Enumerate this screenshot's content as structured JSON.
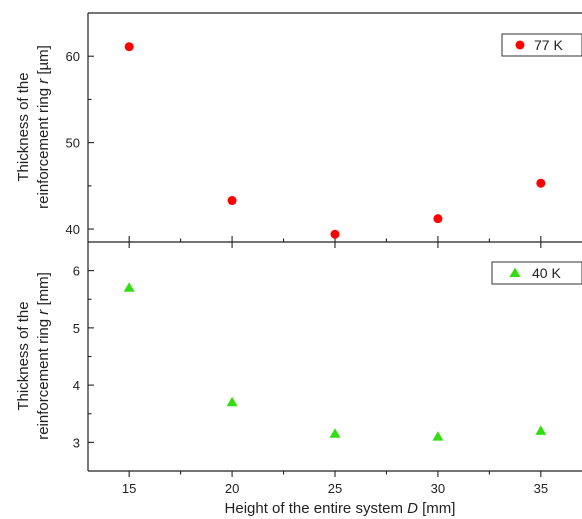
{
  "chart_data": [
    {
      "type": "scatter",
      "title": "",
      "xlabel": "",
      "ylabel_line1": "Thickness of the",
      "ylabel_line2_prefix": "reinforcement ring ",
      "ylabel_var": "r",
      "ylabel_unit": " [µm]",
      "xlim": [
        13,
        37
      ],
      "ylim": [
        38.5,
        65
      ],
      "yticks": [
        40,
        50,
        60
      ],
      "minor_yticks": [
        45,
        55
      ],
      "legend_position": "top-right",
      "series": [
        {
          "name": "77 K",
          "marker": "circle",
          "color": "#ff0000",
          "x": [
            15,
            20,
            25,
            30,
            35
          ],
          "y": [
            61.1,
            43.3,
            39.4,
            41.2,
            45.3
          ]
        }
      ]
    },
    {
      "type": "scatter",
      "title": "",
      "xlabel_prefix": "Height of the entire system ",
      "xlabel_var": "D",
      "xlabel_unit": " [mm]",
      "ylabel_line1": "Thickness of the",
      "ylabel_line2_prefix": "reinforcement ring ",
      "ylabel_var": "r",
      "ylabel_unit": " [mm]",
      "xlim": [
        13,
        37
      ],
      "ylim": [
        2.5,
        6.5
      ],
      "xticks": [
        15,
        20,
        25,
        30,
        35
      ],
      "yticks": [
        3,
        4,
        5,
        6
      ],
      "minor_yticks": [
        3.5,
        4.5,
        5.5
      ],
      "legend_position": "top-right",
      "series": [
        {
          "name": "40 K",
          "marker": "triangle",
          "color": "#33dd11",
          "x": [
            15,
            20,
            25,
            30,
            35
          ],
          "y": [
            5.7,
            3.7,
            3.15,
            3.1,
            3.2
          ]
        }
      ]
    }
  ]
}
